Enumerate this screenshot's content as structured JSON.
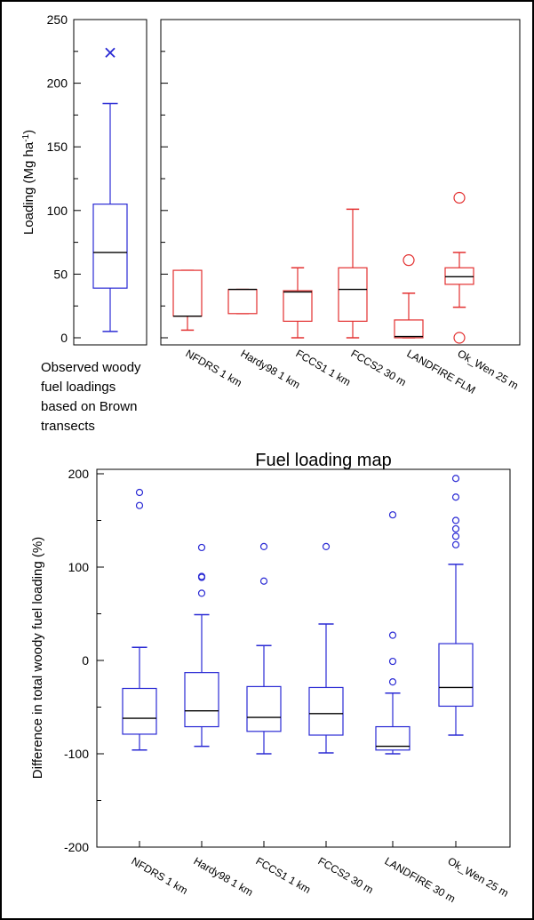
{
  "chart_data": [
    {
      "id": "observed",
      "type": "box",
      "ylabel": "Loading (Mg ha",
      "ylabel_sup": "-1",
      "ylabel_close": ")",
      "ylim": [
        0,
        250
      ],
      "yticks": [
        0,
        50,
        100,
        150,
        200,
        250
      ],
      "caption_lines": [
        "Observed woody",
        "fuel loadings",
        "based on Brown",
        "transects"
      ],
      "color": "#2a2ad4",
      "boxes": [
        {
          "q1": 39,
          "median": 67,
          "q3": 105,
          "whisker_low": 5,
          "whisker_high": 184,
          "outliers": [
            224
          ],
          "outlier_marker": "x"
        }
      ]
    },
    {
      "id": "map-loading",
      "type": "box",
      "xlabel": "Fuel loading map",
      "ylim": [
        0,
        250
      ],
      "color": "#e33030",
      "categories": [
        "NFDRS 1 km",
        "Hardy98 1 km",
        "FCCS1 1 km",
        "FCCS2 30 m",
        "LANDFIRE FLM",
        "Ok_Wen 25 m"
      ],
      "boxes": [
        {
          "q1": 17,
          "median": 17,
          "q3": 53,
          "whisker_low": 6,
          "whisker_high": 53,
          "outliers": []
        },
        {
          "q1": 19,
          "median": 38,
          "q3": 38,
          "whisker_low": 19,
          "whisker_high": 38,
          "outliers": []
        },
        {
          "q1": 13,
          "median": 36,
          "q3": 37,
          "whisker_low": 0,
          "whisker_high": 55,
          "outliers": []
        },
        {
          "q1": 13,
          "median": 38,
          "q3": 55,
          "whisker_low": 0,
          "whisker_high": 101,
          "outliers": []
        },
        {
          "q1": 0,
          "median": 1,
          "q3": 14,
          "whisker_low": 0,
          "whisker_high": 35,
          "outliers": [
            61
          ]
        },
        {
          "q1": 42,
          "median": 48,
          "q3": 55,
          "whisker_low": 24,
          "whisker_high": 67,
          "outliers": [
            110,
            0
          ]
        }
      ]
    },
    {
      "id": "difference",
      "type": "box",
      "ylabel": "Difference in total woody fuel loading (%)",
      "ylim": [
        -200,
        200
      ],
      "yticks": [
        -200,
        -100,
        0,
        100,
        200
      ],
      "color": "#2a2ad4",
      "categories": [
        "NFDRS 1 km",
        "Hardy98 1 km",
        "FCCS1 1 km",
        "FCCS2 30 m",
        "LANDFIRE 30 m",
        "Ok_Wen 25 m"
      ],
      "boxes": [
        {
          "q1": -79,
          "median": -62,
          "q3": -30,
          "whisker_low": -96,
          "whisker_high": 14,
          "outliers": [
            180,
            166
          ]
        },
        {
          "q1": -71,
          "median": -54,
          "q3": -13,
          "whisker_low": -92,
          "whisker_high": 49,
          "outliers": [
            121,
            90,
            89,
            72
          ]
        },
        {
          "q1": -76,
          "median": -61,
          "q3": -28,
          "whisker_low": -100,
          "whisker_high": 16,
          "outliers": [
            122,
            85
          ]
        },
        {
          "q1": -80,
          "median": -57,
          "q3": -29,
          "whisker_low": -99,
          "whisker_high": 39,
          "outliers": [
            122
          ]
        },
        {
          "q1": -96,
          "median": -92,
          "q3": -71,
          "whisker_low": -100,
          "whisker_high": -35,
          "outliers": [
            156,
            27,
            -1,
            -23
          ]
        },
        {
          "q1": -49,
          "median": -29,
          "q3": 18,
          "whisker_low": -80,
          "whisker_high": 103,
          "outliers": [
            195,
            175,
            150,
            141,
            133,
            124
          ]
        }
      ]
    }
  ]
}
